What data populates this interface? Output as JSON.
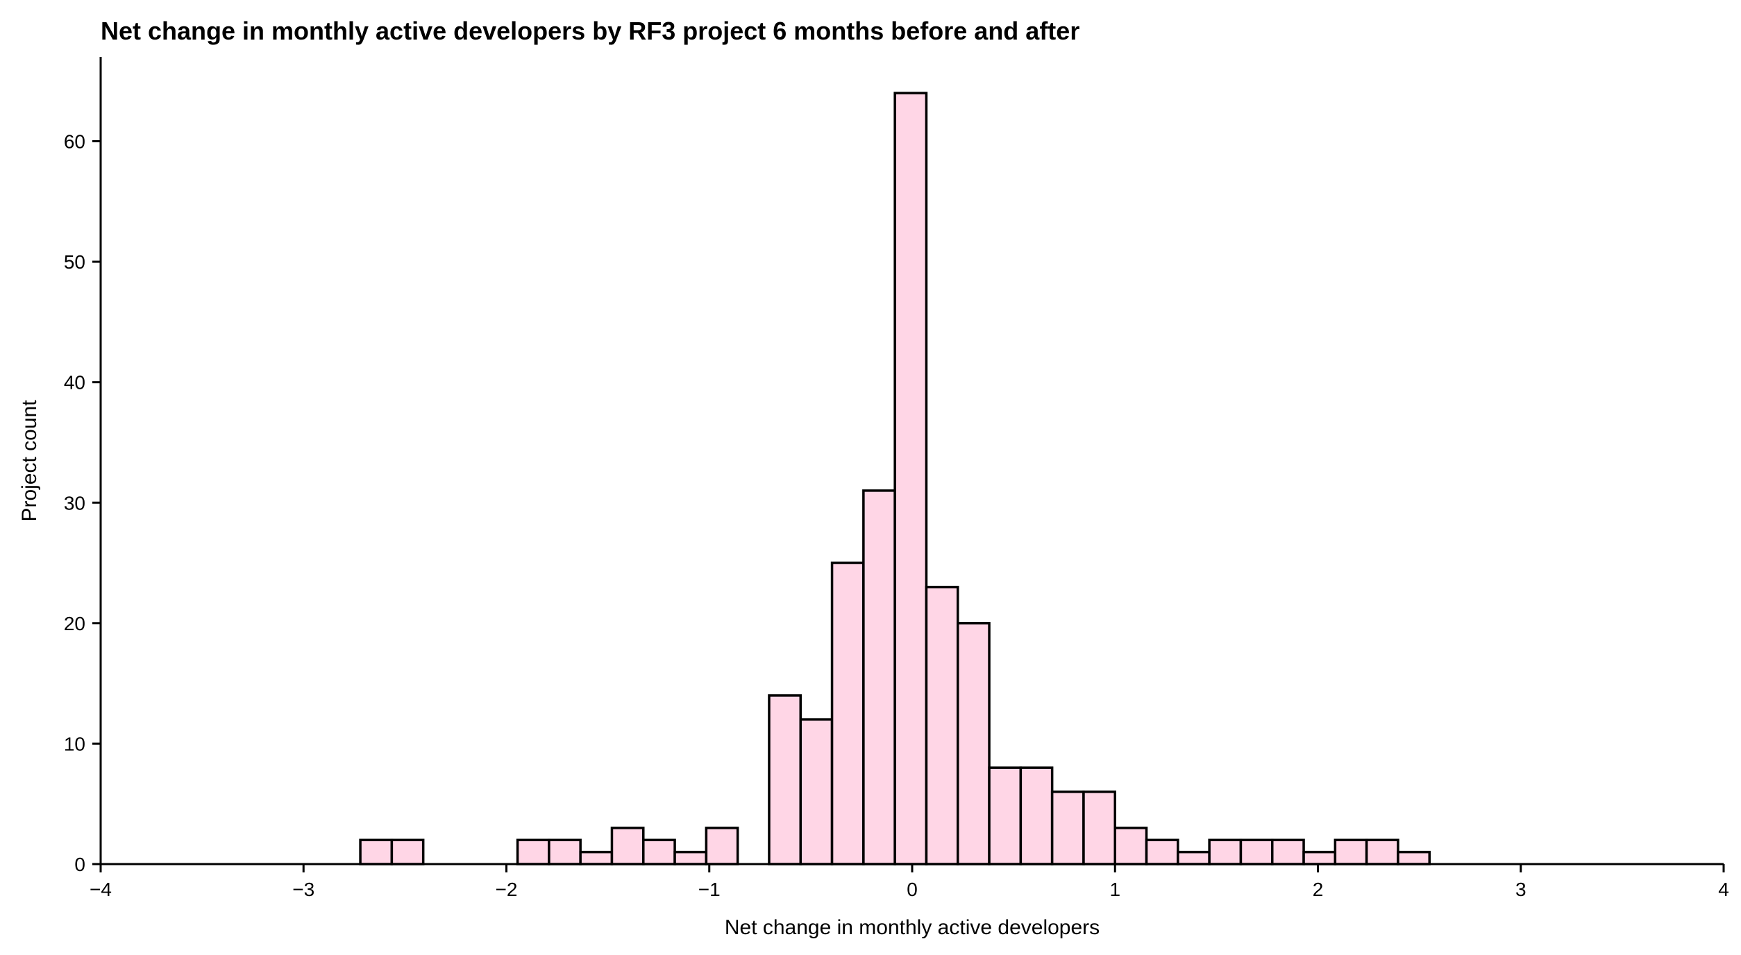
{
  "chart_data": {
    "type": "bar",
    "subtype": "histogram",
    "title": "Net change in monthly active developers by RF3 project 6 months before and after",
    "xlabel": "Net change in monthly active developers",
    "ylabel": "Project count",
    "xlim": [
      -4,
      4
    ],
    "ylim": [
      0,
      67
    ],
    "xticks": [
      -4,
      -3,
      -2,
      -1,
      0,
      1,
      2,
      3,
      4
    ],
    "xtick_labels": [
      "−4",
      "−3",
      "−2",
      "−1",
      "0",
      "1",
      "2",
      "3",
      "4"
    ],
    "yticks": [
      0,
      10,
      20,
      30,
      40,
      50,
      60
    ],
    "ytick_labels": [
      "0",
      "10",
      "20",
      "30",
      "40",
      "50",
      "60"
    ],
    "grid": false,
    "bar_color": "#ffd6e6",
    "edge_color": "#000000",
    "bins": [
      {
        "x0": -2.72,
        "x1": -2.565,
        "count": 2
      },
      {
        "x0": -2.565,
        "x1": -2.41,
        "count": 2
      },
      {
        "x0": -1.945,
        "x1": -1.79,
        "count": 2
      },
      {
        "x0": -1.79,
        "x1": -1.635,
        "count": 2
      },
      {
        "x0": -1.635,
        "x1": -1.48,
        "count": 1
      },
      {
        "x0": -1.48,
        "x1": -1.325,
        "count": 3
      },
      {
        "x0": -1.325,
        "x1": -1.17,
        "count": 2
      },
      {
        "x0": -1.17,
        "x1": -1.015,
        "count": 1
      },
      {
        "x0": -1.015,
        "x1": -0.86,
        "count": 3
      },
      {
        "x0": -0.705,
        "x1": -0.55,
        "count": 14
      },
      {
        "x0": -0.55,
        "x1": -0.395,
        "count": 12
      },
      {
        "x0": -0.395,
        "x1": -0.24,
        "count": 25
      },
      {
        "x0": -0.24,
        "x1": -0.085,
        "count": 31
      },
      {
        "x0": -0.085,
        "x1": 0.07,
        "count": 64
      },
      {
        "x0": 0.07,
        "x1": 0.225,
        "count": 23
      },
      {
        "x0": 0.225,
        "x1": 0.38,
        "count": 20
      },
      {
        "x0": 0.38,
        "x1": 0.535,
        "count": 8
      },
      {
        "x0": 0.535,
        "x1": 0.69,
        "count": 8
      },
      {
        "x0": 0.69,
        "x1": 0.845,
        "count": 6
      },
      {
        "x0": 0.845,
        "x1": 1.0,
        "count": 6
      },
      {
        "x0": 1.0,
        "x1": 1.155,
        "count": 3
      },
      {
        "x0": 1.155,
        "x1": 1.31,
        "count": 2
      },
      {
        "x0": 1.31,
        "x1": 1.465,
        "count": 1
      },
      {
        "x0": 1.465,
        "x1": 1.62,
        "count": 2
      },
      {
        "x0": 1.62,
        "x1": 1.775,
        "count": 2
      },
      {
        "x0": 1.775,
        "x1": 1.93,
        "count": 2
      },
      {
        "x0": 1.93,
        "x1": 2.085,
        "count": 1
      },
      {
        "x0": 2.085,
        "x1": 2.24,
        "count": 2
      },
      {
        "x0": 2.24,
        "x1": 2.395,
        "count": 2
      },
      {
        "x0": 2.395,
        "x1": 2.55,
        "count": 1
      }
    ]
  }
}
